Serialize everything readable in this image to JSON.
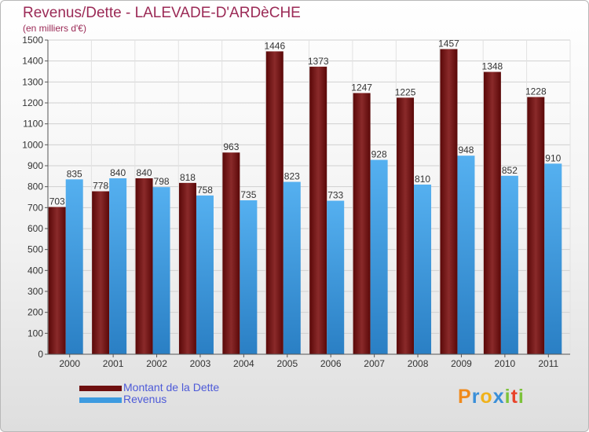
{
  "title": "Revenus/Dette - LALEVADE-D'ARDèCHE",
  "subtitle": "(en milliers d'€)",
  "colors": {
    "debt": "#6e0f0f",
    "revenue": "#3d9be0",
    "title": "#9b2a56",
    "legend_text": "#4d5ad8"
  },
  "chart_data": {
    "type": "bar",
    "categories": [
      "2000",
      "2001",
      "2002",
      "2003",
      "2004",
      "2005",
      "2006",
      "2007",
      "2008",
      "2009",
      "2010",
      "2011"
    ],
    "series": [
      {
        "name": "Montant de la Dette",
        "values": [
          703,
          778,
          840,
          818,
          963,
          1446,
          1373,
          1247,
          1225,
          1457,
          1348,
          1228
        ]
      },
      {
        "name": "Revenus",
        "values": [
          835,
          840,
          798,
          758,
          735,
          823,
          733,
          928,
          810,
          948,
          852,
          910
        ]
      }
    ],
    "ylim": [
      0,
      1500
    ],
    "yticks": [
      0,
      100,
      200,
      300,
      400,
      500,
      600,
      700,
      800,
      900,
      1000,
      1100,
      1200,
      1300,
      1400,
      1500
    ],
    "grid": true
  },
  "legend": {
    "debt_label": "Montant de la Dette",
    "revenue_label": "Revenus"
  },
  "logo": {
    "letters": [
      "P",
      "r",
      "o",
      "x",
      "i",
      "t",
      "i"
    ]
  }
}
